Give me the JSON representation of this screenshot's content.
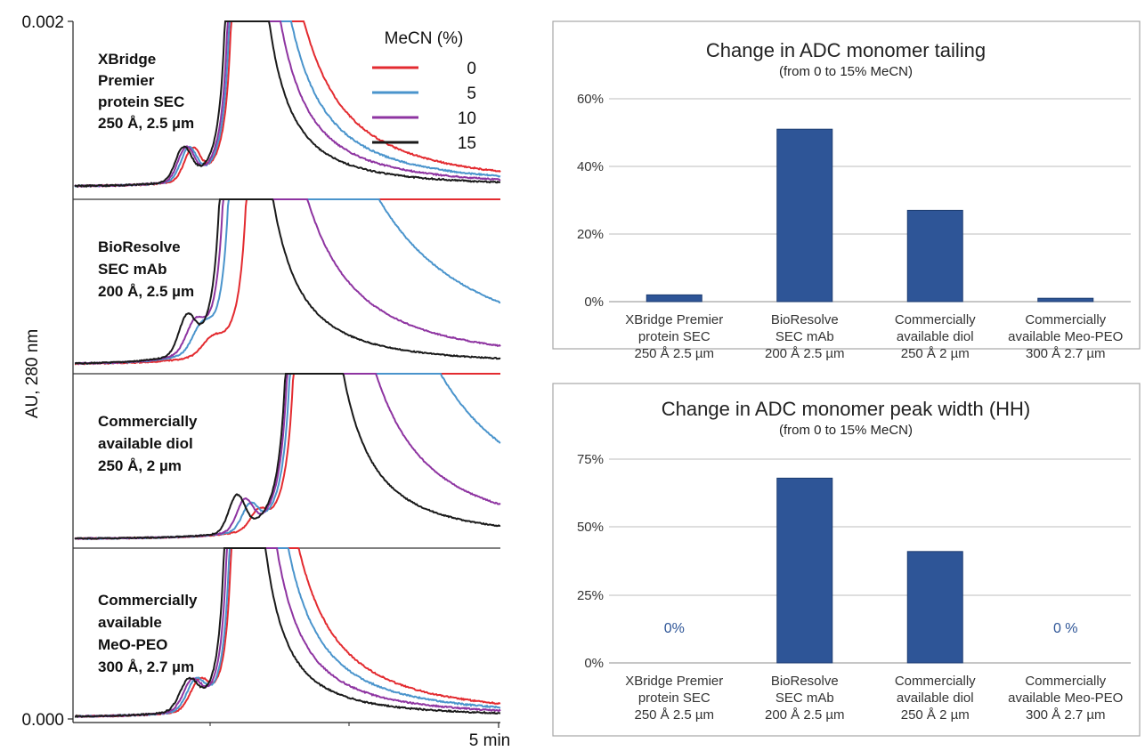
{
  "colors": {
    "mecn_0": "#e32b30",
    "mecn_5": "#4a94cc",
    "mecn_10": "#8e34a1",
    "mecn_15": "#1a1a1a",
    "bar": "#2e5597",
    "bar_edge": "#1d3c70",
    "zero_label": "#2e5597",
    "grid": "#bdbdbd",
    "frame": "#a6a6a6"
  },
  "left_figure": {
    "y_axis_label": "AU, 280 nm",
    "y_top_tick": "0.002",
    "y_bottom_tick": "0.000",
    "x_end_label": "5 min",
    "legend": {
      "title": "MeCN (%)",
      "entries": [
        {
          "label": "0",
          "color_key": "mecn_0"
        },
        {
          "label": "5",
          "color_key": "mecn_5"
        },
        {
          "label": "10",
          "color_key": "mecn_10"
        },
        {
          "label": "15",
          "color_key": "mecn_15"
        }
      ]
    },
    "panels": [
      {
        "label_lines": [
          "XBridge",
          "Premier",
          "protein SEC",
          "250 Å, 2.5 µm"
        ]
      },
      {
        "label_lines": [
          "BioResolve",
          "SEC mAb",
          "200 Å, 2.5 µm"
        ]
      },
      {
        "label_lines": [
          "Commercially",
          "available diol",
          "250 Å, 2 µm"
        ]
      },
      {
        "label_lines": [
          "Commercially",
          "available",
          "MeO-PEO",
          "300 Å, 2.7 µm"
        ]
      }
    ]
  },
  "chart_data": [
    {
      "type": "bar",
      "title": "Change in ADC monomer tailing",
      "subtitle": "(from 0 to 15% MeCN)",
      "categories": [
        [
          "XBridge Premier",
          "protein SEC",
          "250 Å 2.5 µm"
        ],
        [
          "BioResolve",
          "SEC mAb",
          "200 Å 2.5 µm"
        ],
        [
          "Commercially",
          "available diol",
          "250 Å 2 µm"
        ],
        [
          "Commercially",
          "available Meo-PEO",
          "300 Å 2.7 µm"
        ]
      ],
      "values": [
        2,
        51,
        27,
        1
      ],
      "value_labels": [
        "",
        "",
        "",
        ""
      ],
      "y_ticks": [
        "0%",
        "20%",
        "40%",
        "60%"
      ],
      "ylim": [
        0,
        60
      ],
      "grid": true
    },
    {
      "type": "bar",
      "title": "Change in ADC monomer peak width (HH)",
      "subtitle": "(from 0 to 15% MeCN)",
      "categories": [
        [
          "XBridge Premier",
          "protein SEC",
          "250 Å 2.5 µm"
        ],
        [
          "BioResolve",
          "SEC mAb",
          "200 Å 2.5 µm"
        ],
        [
          "Commercially",
          "available diol",
          "250 Å 2 µm"
        ],
        [
          "Commercially",
          "available Meo-PEO",
          "300 Å 2.7 µm"
        ]
      ],
      "values": [
        0,
        68,
        41,
        0
      ],
      "value_labels": [
        "0%",
        "",
        "",
        "0 %"
      ],
      "y_ticks": [
        "0%",
        "25%",
        "50%",
        "75%"
      ],
      "ylim": [
        0,
        75
      ],
      "grid": true
    }
  ]
}
